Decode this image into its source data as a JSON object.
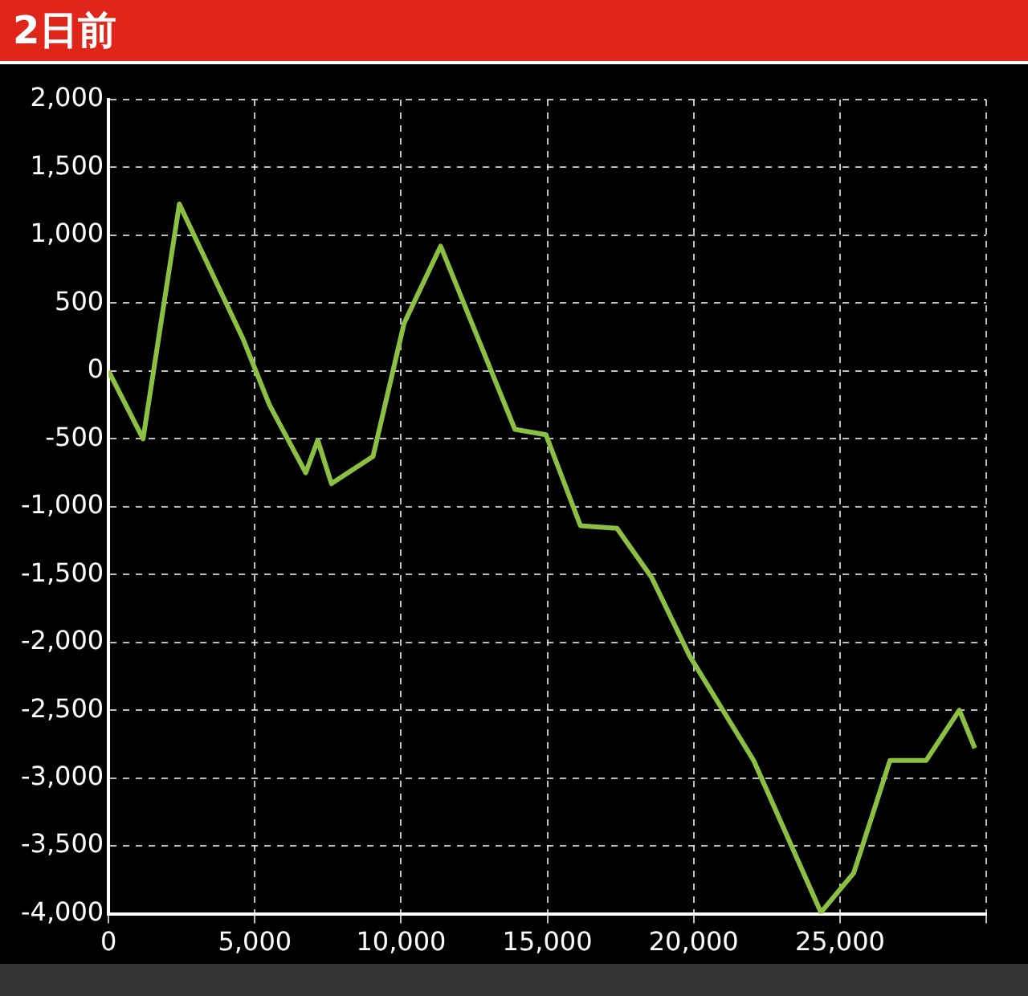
{
  "chart_data": {
    "type": "line",
    "title": "2日前",
    "x": [
      0,
      1180,
      2420,
      4610,
      5500,
      6740,
      7150,
      7620,
      9040,
      10100,
      11350,
      13890,
      14950,
      16130,
      17380,
      18560,
      19860,
      22050,
      24350,
      25470,
      26710,
      27950,
      29080,
      29610
    ],
    "series": [
      {
        "color": "#8cc043",
        "values": [
          0,
          -500,
          1230,
          230,
          -250,
          -750,
          -510,
          -830,
          -630,
          350,
          920,
          -430,
          -470,
          -1140,
          -1160,
          -1520,
          -2100,
          -2870,
          -3990,
          -3700,
          -2870,
          -2870,
          -2500,
          -2780
        ]
      }
    ],
    "xlim": [
      0,
      30000
    ],
    "xticks": [
      0,
      {
        "value": 5000,
        "label": "5,000"
      },
      {
        "value": 10000,
        "label": "10,000"
      },
      {
        "value": 15000,
        "label": "15,000"
      },
      {
        "value": 20000,
        "label": "20,000"
      },
      {
        "value": 25000,
        "label": "25,000"
      },
      {
        "value": 30000,
        "label": null
      }
    ],
    "ylim": [
      -4000,
      2000
    ],
    "yticks": [
      {
        "value": -4000,
        "label": "-4,000"
      },
      {
        "value": -3500,
        "label": "-3,500"
      },
      {
        "value": -3000,
        "label": "-3,000"
      },
      {
        "value": -2500,
        "label": "-2,500"
      },
      {
        "value": -2000,
        "label": "-2,000"
      },
      {
        "value": -1500,
        "label": "-1,500"
      },
      {
        "value": -1000,
        "label": "-1,000"
      },
      -500,
      0,
      500,
      {
        "value": 1000,
        "label": "1,000"
      },
      {
        "value": 1500,
        "label": "1,500"
      },
      {
        "value": 2000,
        "label": "2,000"
      }
    ],
    "grid": true,
    "legend": false
  }
}
